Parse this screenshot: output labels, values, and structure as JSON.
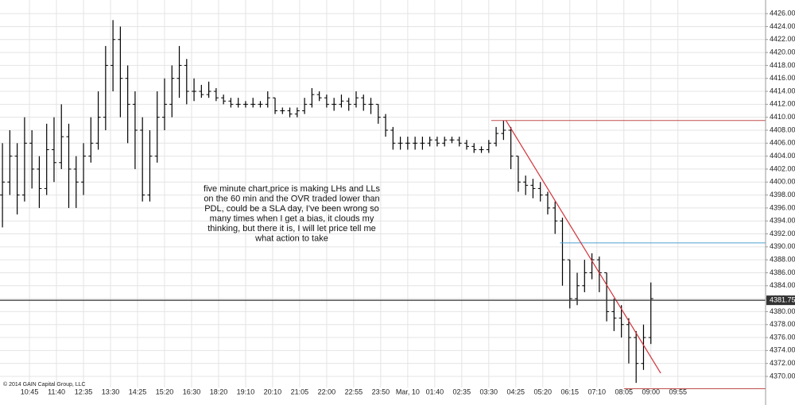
{
  "chart_data": {
    "type": "ohlc",
    "color": "#000000",
    "grid": true,
    "copyright": "© 2014 GAIN Capital Group, LLC",
    "annotation": [
      "five minute chart,price is making LHs and LLs",
      "on the 60 min and the OVR  traded lower than",
      "PDL, could be a SLA day, I've been wrong so",
      "many times when I get a bias, it clouds my",
      "thinking, but there it is, I will let price tell me",
      "what action to take"
    ],
    "last_price": 4381.75,
    "last_price_color": "#333333",
    "hlines": [
      {
        "value": 4409.5,
        "x_from": 199,
        "color": "#c0504d"
      },
      {
        "value": 4390.6,
        "x_from": 227,
        "color": "#4f9fd0"
      },
      {
        "value": 4368.1,
        "x_from": 253,
        "color": "#c0504d"
      }
    ],
    "trendline": {
      "x": [
        205,
        268
      ],
      "y": [
        4409.5,
        4370.5
      ],
      "color": "#d0323a"
    },
    "xlim": [
      -1,
      310.7
    ],
    "ylim": [
      4366.2,
      4428.1
    ],
    "xticks": [
      {
        "value": 11,
        "label": "10:45"
      },
      {
        "value": 22,
        "label": "11:40"
      },
      {
        "value": 33,
        "label": "12:35"
      },
      {
        "value": 44,
        "label": "13:30"
      },
      {
        "value": 55,
        "label": "14:25"
      },
      {
        "value": 66,
        "label": "15:20"
      },
      {
        "value": 77,
        "label": "16:30"
      },
      {
        "value": 88,
        "label": "18:20"
      },
      {
        "value": 99,
        "label": "19:10"
      },
      {
        "value": 110,
        "label": "20:10"
      },
      {
        "value": 121,
        "label": "21:05"
      },
      {
        "value": 132,
        "label": "22:00"
      },
      {
        "value": 143,
        "label": "22:55"
      },
      {
        "value": 154,
        "label": "23:50"
      },
      {
        "value": 165,
        "label": "Mar, 10"
      },
      {
        "value": 176,
        "label": "01:40"
      },
      {
        "value": 187,
        "label": "02:35"
      },
      {
        "value": 198,
        "label": "03:30"
      },
      {
        "value": 209,
        "label": "04:25"
      },
      {
        "value": 220,
        "label": "05:20"
      },
      {
        "value": 231,
        "label": "06:15"
      },
      {
        "value": 242,
        "label": "07:10"
      },
      {
        "value": 253,
        "label": "08:05"
      },
      {
        "value": 264,
        "label": "09:00"
      },
      {
        "value": 275,
        "label": "09:55"
      }
    ],
    "yticks": [
      {
        "value": 4370,
        "label": "4370.00"
      },
      {
        "value": 4372,
        "label": "4372.00"
      },
      {
        "value": 4374,
        "label": "4374.00"
      },
      {
        "value": 4376,
        "label": "4376.00"
      },
      {
        "value": 4378,
        "label": "4378.00"
      },
      {
        "value": 4380,
        "label": "4380.00"
      },
      {
        "value": 4382,
        "label": "4382.00"
      },
      {
        "value": 4384,
        "label": "4384.00"
      },
      {
        "value": 4386,
        "label": "4386.00"
      },
      {
        "value": 4388,
        "label": "4388.00"
      },
      {
        "value": 4390,
        "label": "4390.00"
      },
      {
        "value": 4392,
        "label": "4392.00"
      },
      {
        "value": 4394,
        "label": "4394.00"
      },
      {
        "value": 4396,
        "label": "4396.00"
      },
      {
        "value": 4398,
        "label": "4398.00"
      },
      {
        "value": 4400,
        "label": "4400.00"
      },
      {
        "value": 4402,
        "label": "4402.00"
      },
      {
        "value": 4404,
        "label": "4404.00"
      },
      {
        "value": 4406,
        "label": "4406.00"
      },
      {
        "value": 4408,
        "label": "4408.00"
      },
      {
        "value": 4410,
        "label": "4410.00"
      },
      {
        "value": 4412,
        "label": "4412.00"
      },
      {
        "value": 4414,
        "label": "4414.00"
      },
      {
        "value": 4416,
        "label": "4416.00"
      },
      {
        "value": 4418,
        "label": "4418.00"
      },
      {
        "value": 4420,
        "label": "4420.00"
      },
      {
        "value": 4422,
        "label": "4422.00"
      },
      {
        "value": 4424,
        "label": "4424.00"
      },
      {
        "value": 4426,
        "label": "4426.00"
      }
    ],
    "x": [
      0,
      3,
      6,
      9,
      12,
      15,
      18,
      21,
      24,
      27,
      30,
      33,
      36,
      39,
      42,
      45,
      48,
      51,
      54,
      57,
      60,
      63,
      66,
      69,
      72,
      75,
      78,
      81,
      84,
      87,
      90,
      93,
      96,
      99,
      102,
      105,
      108,
      111,
      114,
      117,
      120,
      123,
      126,
      129,
      132,
      135,
      138,
      141,
      144,
      147,
      150,
      153,
      156,
      159,
      162,
      165,
      168,
      171,
      174,
      177,
      180,
      183,
      186,
      189,
      192,
      195,
      198,
      201,
      204,
      207,
      210,
      213,
      216,
      219,
      222,
      225,
      228,
      231,
      234,
      237,
      240,
      243,
      246,
      249,
      252,
      255,
      258,
      261,
      264
    ],
    "open": [
      4398,
      4400,
      4404,
      4398,
      4406,
      4402,
      4399,
      4405,
      4403,
      4407,
      4402,
      4400,
      4404,
      4406,
      4410,
      4418,
      4422,
      4416,
      4412,
      4408,
      4398,
      4404,
      4410,
      4412,
      4416,
      4418,
      4414,
      4414,
      4413.5,
      4414,
      4413,
      4412.5,
      4412,
      4412,
      4412,
      4412,
      4412,
      4413,
      4411,
      4411,
      4410.5,
      4411,
      4412,
      4413.5,
      4413,
      4412,
      4412,
      4412.5,
      4412,
      4413,
      4412,
      4412,
      4410,
      4408,
      4406,
      4406,
      4406,
      4406,
      4406,
      4406.5,
      4406,
      4406.5,
      4406.5,
      4406,
      4405.5,
      4405,
      4405,
      4406,
      4407.5,
      4408,
      4404,
      4400,
      4399.5,
      4399,
      4398,
      4396,
      4394,
      4388,
      4382,
      4384,
      4386,
      4388,
      4386,
      4380,
      4379,
      4378,
      4376,
      4372,
      4376
    ],
    "high": [
      4406,
      4408,
      4406,
      4410,
      4408,
      4404,
      4409,
      4410,
      4412,
      4409,
      4404,
      4406,
      4410,
      4414,
      4421,
      4425,
      4424,
      4418,
      4414,
      4410,
      4408,
      4414,
      4416,
      4418,
      4421,
      4419,
      4416,
      4415,
      4415.5,
      4414.5,
      4413.5,
      4413,
      4413,
      4412.5,
      4413,
      4412.5,
      4414,
      4413,
      4411.5,
      4411.5,
      4411.5,
      4413,
      4414.5,
      4414,
      4413.5,
      4413,
      4413.5,
      4413,
      4414,
      4413.5,
      4413,
      4412,
      4410.5,
      4408.5,
      4407,
      4407,
      4407,
      4407,
      4407,
      4407,
      4407,
      4407,
      4407,
      4406.5,
      4406,
      4405.5,
      4406.5,
      4408.5,
      4409.5,
      4408.5,
      4404,
      4401,
      4400.5,
      4400,
      4398.5,
      4397,
      4394.5,
      4388,
      4386,
      4388,
      4389,
      4388.5,
      4386,
      4382,
      4381,
      4379,
      4377,
      4378,
      4384.5
    ],
    "low": [
      4393,
      4398,
      4395,
      4397,
      4399,
      4396,
      4398,
      4400,
      4402,
      4396,
      4396,
      4398,
      4403,
      4405,
      4408,
      4414,
      4410,
      4406,
      4402,
      4397,
      4397,
      4403,
      4408,
      4410,
      4413,
      4412,
      4412.5,
      4413,
      4413,
      4412.5,
      4412,
      4411.5,
      4411.5,
      4411.5,
      4411.5,
      4411.5,
      4411.5,
      4410.5,
      4410.5,
      4410,
      4410,
      4410.5,
      4411.5,
      4412.5,
      4411.5,
      4411,
      4411.5,
      4411,
      4411.5,
      4411,
      4410.5,
      4409,
      4407,
      4405,
      4405,
      4405,
      4405,
      4405,
      4405.5,
      4405.5,
      4405.5,
      4406,
      4405.5,
      4405,
      4404.5,
      4404.5,
      4404.5,
      4405.5,
      4406.5,
      4402,
      4398.5,
      4398,
      4397.5,
      4397,
      4395,
      4392,
      4384,
      4380.5,
      4381,
      4383,
      4385,
      4383,
      4378.5,
      4377,
      4376,
      4372,
      4369,
      4371,
      4375
    ],
    "close": [
      4400,
      4404,
      4398,
      4406,
      4402,
      4399,
      4405,
      4403,
      4407,
      4402,
      4400,
      4404,
      4406,
      4410,
      4418,
      4422,
      4416,
      4412,
      4408,
      4398,
      4404,
      4410,
      4412,
      4416,
      4418,
      4414,
      4414,
      4413.5,
      4414,
      4413,
      4412.5,
      4412,
      4412,
      4412,
      4412,
      4412,
      4413,
      4411,
      4411,
      4410.5,
      4411,
      4412,
      4413.5,
      4413,
      4412,
      4412,
      4412.5,
      4412,
      4413,
      4412,
      4412,
      4410,
      4408,
      4406,
      4406,
      4406,
      4406,
      4406,
      4406.5,
      4406,
      4406.5,
      4406.5,
      4406,
      4405.5,
      4405,
      4405,
      4406,
      4407.5,
      4408,
      4404,
      4400,
      4399.5,
      4399,
      4398,
      4396,
      4394,
      4388,
      4382,
      4384,
      4386,
      4388,
      4386,
      4380,
      4379,
      4378,
      4376,
      4372,
      4376,
      4382
    ]
  }
}
